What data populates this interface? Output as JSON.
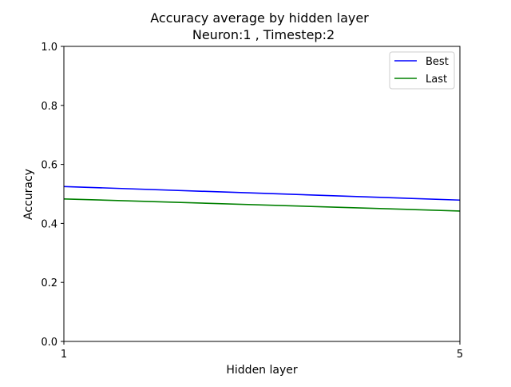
{
  "chart_data": {
    "type": "line",
    "title": "Accuracy average by hidden layer",
    "subtitle": "Neuron:1 , Timestep:2",
    "xlabel": "Hidden layer",
    "ylabel": "Accuracy",
    "xlim": [
      1,
      5
    ],
    "ylim": [
      0.0,
      1.0
    ],
    "x_ticks": [
      "1",
      "5"
    ],
    "y_ticks": [
      "0.0",
      "0.2",
      "0.4",
      "0.6",
      "0.8",
      "1.0"
    ],
    "x": [
      1,
      5
    ],
    "series": [
      {
        "name": "Best",
        "values": [
          0.525,
          0.479
        ],
        "color": "#0000ff"
      },
      {
        "name": "Last",
        "values": [
          0.483,
          0.442
        ],
        "color": "#008000"
      }
    ],
    "grid": false,
    "legend_position": "top-right"
  }
}
